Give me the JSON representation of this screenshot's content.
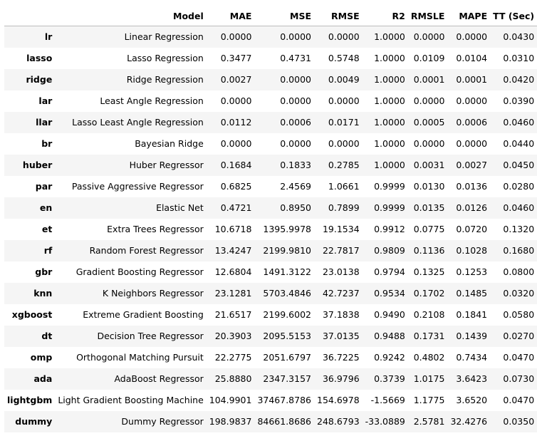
{
  "table": {
    "columns": [
      "",
      "Model",
      "MAE",
      "MSE",
      "RMSE",
      "R2",
      "RMSLE",
      "MAPE",
      "TT (Sec)"
    ],
    "rows": [
      [
        "lr",
        "Linear Regression",
        "0.0000",
        "0.0000",
        "0.0000",
        "1.0000",
        "0.0000",
        "0.0000",
        "0.0430"
      ],
      [
        "lasso",
        "Lasso Regression",
        "0.3477",
        "0.4731",
        "0.5748",
        "1.0000",
        "0.0109",
        "0.0104",
        "0.0310"
      ],
      [
        "ridge",
        "Ridge Regression",
        "0.0027",
        "0.0000",
        "0.0049",
        "1.0000",
        "0.0001",
        "0.0001",
        "0.0420"
      ],
      [
        "lar",
        "Least Angle Regression",
        "0.0000",
        "0.0000",
        "0.0000",
        "1.0000",
        "0.0000",
        "0.0000",
        "0.0390"
      ],
      [
        "llar",
        "Lasso Least Angle Regression",
        "0.0112",
        "0.0006",
        "0.0171",
        "1.0000",
        "0.0005",
        "0.0006",
        "0.0460"
      ],
      [
        "br",
        "Bayesian Ridge",
        "0.0000",
        "0.0000",
        "0.0000",
        "1.0000",
        "0.0000",
        "0.0000",
        "0.0440"
      ],
      [
        "huber",
        "Huber Regressor",
        "0.1684",
        "0.1833",
        "0.2785",
        "1.0000",
        "0.0031",
        "0.0027",
        "0.0450"
      ],
      [
        "par",
        "Passive Aggressive Regressor",
        "0.6825",
        "2.4569",
        "1.0661",
        "0.9999",
        "0.0130",
        "0.0136",
        "0.0280"
      ],
      [
        "en",
        "Elastic Net",
        "0.4721",
        "0.8950",
        "0.7899",
        "0.9999",
        "0.0135",
        "0.0126",
        "0.0460"
      ],
      [
        "et",
        "Extra Trees Regressor",
        "10.6718",
        "1395.9978",
        "19.1534",
        "0.9912",
        "0.0775",
        "0.0720",
        "0.1320"
      ],
      [
        "rf",
        "Random Forest Regressor",
        "13.4247",
        "2199.9810",
        "22.7817",
        "0.9809",
        "0.1136",
        "0.1028",
        "0.1680"
      ],
      [
        "gbr",
        "Gradient Boosting Regressor",
        "12.6804",
        "1491.3122",
        "23.0138",
        "0.9794",
        "0.1325",
        "0.1253",
        "0.0800"
      ],
      [
        "knn",
        "K Neighbors Regressor",
        "23.1281",
        "5703.4846",
        "42.7237",
        "0.9534",
        "0.1702",
        "0.1485",
        "0.0320"
      ],
      [
        "xgboost",
        "Extreme Gradient Boosting",
        "21.6517",
        "2199.6002",
        "37.1838",
        "0.9490",
        "0.2108",
        "0.1841",
        "0.0580"
      ],
      [
        "dt",
        "Decision Tree Regressor",
        "20.3903",
        "2095.5153",
        "37.0135",
        "0.9488",
        "0.1731",
        "0.1439",
        "0.0270"
      ],
      [
        "omp",
        "Orthogonal Matching Pursuit",
        "22.2775",
        "2051.6797",
        "36.7225",
        "0.9242",
        "0.4802",
        "0.7434",
        "0.0470"
      ],
      [
        "ada",
        "AdaBoost Regressor",
        "25.8880",
        "2347.3157",
        "36.9796",
        "0.3739",
        "1.0175",
        "3.6423",
        "0.0730"
      ],
      [
        "lightgbm",
        "Light Gradient Boosting Machine",
        "104.9901",
        "37467.8786",
        "154.6978",
        "-1.5669",
        "1.1775",
        "3.6520",
        "0.0470"
      ],
      [
        "dummy",
        "Dummy Regressor",
        "198.9837",
        "84661.8686",
        "248.6793",
        "-33.0889",
        "2.5781",
        "32.4276",
        "0.0350"
      ]
    ]
  }
}
